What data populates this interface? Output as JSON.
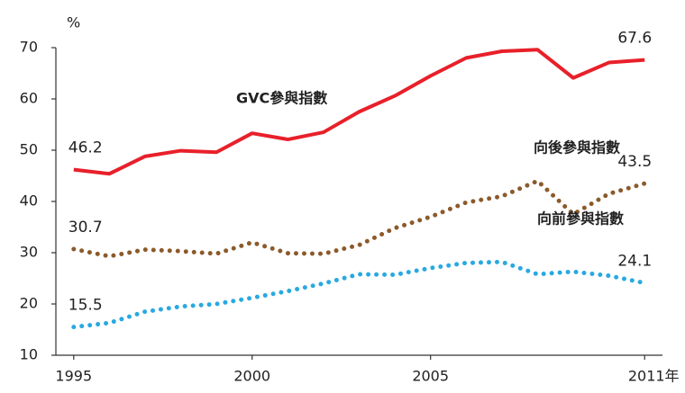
{
  "chart_data": {
    "type": "line",
    "y_label": "%",
    "x": [
      1995,
      1996,
      1997,
      1998,
      1999,
      2000,
      2001,
      2002,
      2003,
      2004,
      2005,
      2006,
      2007,
      2008,
      2009,
      2010,
      2011
    ],
    "xlim": [
      1994.5,
      2011.5
    ],
    "xticks": [
      1995,
      2000,
      2005,
      {
        "value": 2011,
        "label": "2011年"
      }
    ],
    "ylim": [
      10,
      70
    ],
    "yticks": [
      10,
      20,
      30,
      40,
      50,
      60,
      70
    ],
    "grid": false,
    "series": [
      {
        "name": "GVC參與指數",
        "color": "#e8202a",
        "style": "solid",
        "values": [
          46.2,
          45.4,
          48.8,
          49.9,
          49.6,
          53.3,
          52.1,
          53.5,
          57.5,
          60.6,
          64.5,
          68.0,
          69.3,
          69.6,
          64.1,
          67.1,
          67.6
        ]
      },
      {
        "name": "向後參與指數",
        "color": "#8b5a2b",
        "style": "dotted",
        "values": [
          30.7,
          29.3,
          30.6,
          30.3,
          29.8,
          32.0,
          29.9,
          29.8,
          31.5,
          34.8,
          37.0,
          39.8,
          41.0,
          44.0,
          37.5,
          41.5,
          43.5
        ]
      },
      {
        "name": "向前參與指數",
        "color": "#29a9e0",
        "style": "dotted",
        "values": [
          15.5,
          16.3,
          18.5,
          19.5,
          20.0,
          21.2,
          22.5,
          24.0,
          25.8,
          25.7,
          27.0,
          28.0,
          28.2,
          25.8,
          26.3,
          25.5,
          24.1
        ]
      }
    ]
  }
}
